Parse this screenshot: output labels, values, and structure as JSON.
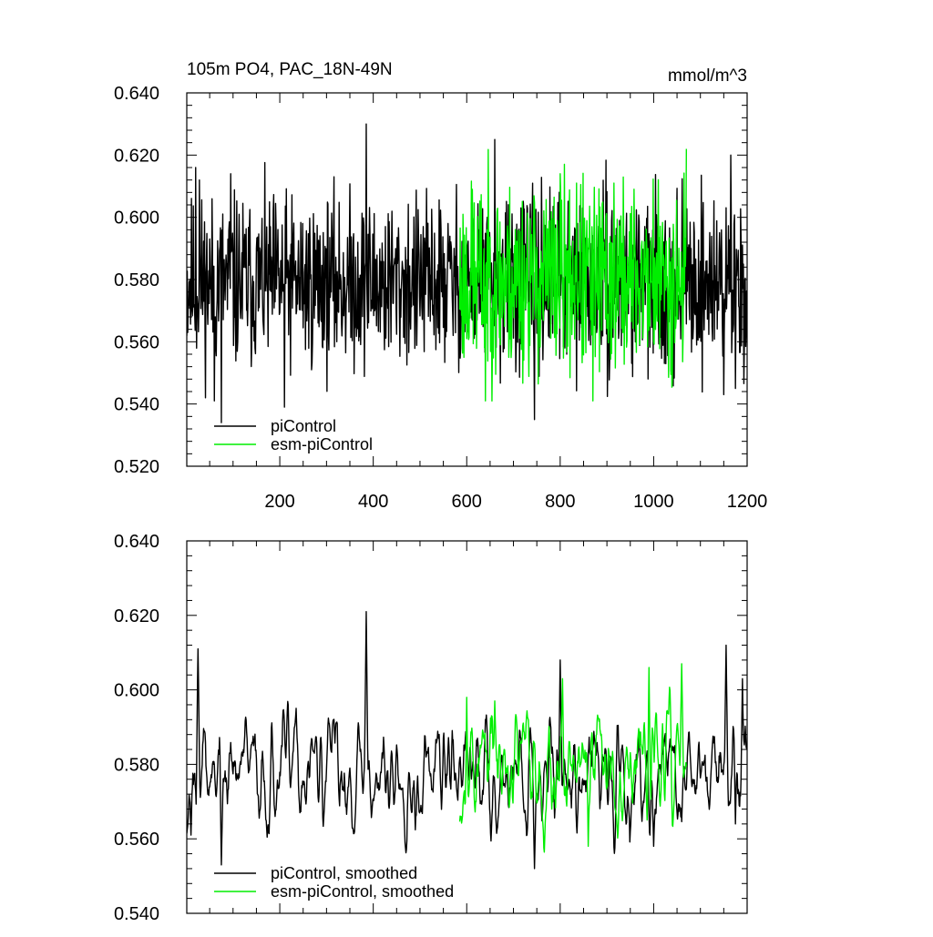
{
  "chart_data": [
    {
      "type": "line",
      "title": "105m PO4, PAC_18N-49N",
      "units": "mmol/m^3",
      "xlim": [
        1,
        1200
      ],
      "ylim": [
        0.52,
        0.64
      ],
      "xticks": [
        200,
        400,
        600,
        800,
        1000,
        1200
      ],
      "xtick_labels": [
        "200",
        "400",
        "600",
        "800",
        "1000",
        "1200"
      ],
      "yticks": [
        0.52,
        0.54,
        0.56,
        0.58,
        0.6,
        0.62,
        0.64
      ],
      "ytick_labels": [
        "0.520",
        "0.540",
        "0.560",
        "0.580",
        "0.600",
        "0.620",
        "0.640"
      ],
      "legend_position": "bottom-left",
      "series": [
        {
          "name": "piControl",
          "color": "#000000",
          "x_start": 1,
          "x_end": 1200,
          "mean": 0.579,
          "noise": 0.0135,
          "seed": 11,
          "features": [
            {
              "x": 20,
              "y": 0.616
            },
            {
              "x": 28,
              "y": 0.612
            },
            {
              "x": 60,
              "y": 0.541
            },
            {
              "x": 75,
              "y": 0.534
            },
            {
              "x": 95,
              "y": 0.614
            },
            {
              "x": 210,
              "y": 0.539
            },
            {
              "x": 385,
              "y": 0.63
            },
            {
              "x": 660,
              "y": 0.625
            },
            {
              "x": 745,
              "y": 0.535
            },
            {
              "x": 1150,
              "y": 0.543
            },
            {
              "x": 1175,
              "y": 0.545
            },
            {
              "x": 1165,
              "y": 0.62
            }
          ]
        },
        {
          "name": "esm-piControl",
          "color": "#00ee00",
          "x_start": 585,
          "x_end": 1070,
          "mean": 0.58,
          "noise": 0.015,
          "seed": 23,
          "features": [
            {
              "x": 612,
              "y": 0.609
            },
            {
              "x": 640,
              "y": 0.541
            },
            {
              "x": 690,
              "y": 0.555
            },
            {
              "x": 800,
              "y": 0.614
            },
            {
              "x": 835,
              "y": 0.611
            },
            {
              "x": 870,
              "y": 0.541
            },
            {
              "x": 915,
              "y": 0.611
            },
            {
              "x": 1040,
              "y": 0.548
            },
            {
              "x": 1070,
              "y": 0.622
            }
          ]
        }
      ]
    },
    {
      "type": "line",
      "title": "",
      "units": "",
      "xlim": [
        1,
        1200
      ],
      "ylim": [
        0.54,
        0.64
      ],
      "yticks": [
        0.54,
        0.56,
        0.58,
        0.6,
        0.62,
        0.64
      ],
      "ytick_labels": [
        "0.540",
        "0.560",
        "0.580",
        "0.600",
        "0.620",
        "0.640"
      ],
      "legend_position": "bottom-left",
      "series": [
        {
          "name": "piControl, smoothed",
          "color": "#000000",
          "x_start": 1,
          "x_end": 1200,
          "mean": 0.578,
          "noise": 0.0085,
          "seed": 37,
          "features": [
            {
              "x": 10,
              "y": 0.561
            },
            {
              "x": 25,
              "y": 0.611
            },
            {
              "x": 75,
              "y": 0.553
            },
            {
              "x": 385,
              "y": 0.621
            },
            {
              "x": 745,
              "y": 0.552
            },
            {
              "x": 800,
              "y": 0.608
            },
            {
              "x": 1000,
              "y": 0.558
            },
            {
              "x": 1155,
              "y": 0.612
            },
            {
              "x": 1175,
              "y": 0.564
            },
            {
              "x": 1190,
              "y": 0.603
            },
            {
              "x": 1200,
              "y": 0.584
            }
          ]
        },
        {
          "name": "esm-piControl, smoothed",
          "color": "#00ee00",
          "x_start": 585,
          "x_end": 1070,
          "mean": 0.58,
          "noise": 0.0095,
          "seed": 53,
          "features": [
            {
              "x": 600,
              "y": 0.598
            },
            {
              "x": 660,
              "y": 0.597
            },
            {
              "x": 805,
              "y": 0.603
            },
            {
              "x": 860,
              "y": 0.558
            },
            {
              "x": 990,
              "y": 0.606
            },
            {
              "x": 1060,
              "y": 0.607
            }
          ]
        }
      ]
    }
  ]
}
